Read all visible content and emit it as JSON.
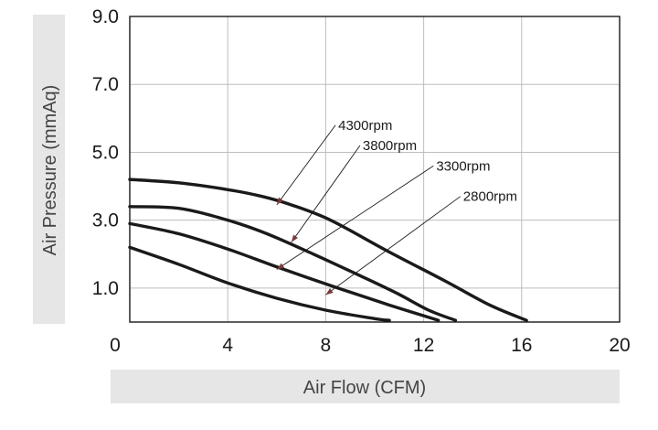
{
  "chart_data": {
    "type": "line",
    "title": "",
    "xlabel": "Air Flow (CFM)",
    "ylabel": "Air Pressure (mmAq)",
    "xlim": [
      0,
      20
    ],
    "ylim": [
      0,
      9
    ],
    "x_ticks": [
      0,
      4,
      8,
      12,
      16,
      20
    ],
    "x_tick_labels": [
      "0",
      "4",
      "8",
      "12",
      "16",
      "20"
    ],
    "y_ticks": [
      1,
      3,
      5,
      7,
      9
    ],
    "y_tick_labels": [
      "1.0",
      "3.0",
      "5.0",
      "7.0",
      "9.0"
    ],
    "grid": true,
    "legend": "none",
    "series": [
      {
        "name": "4300rpm",
        "x": [
          0,
          2,
          4,
          5.4,
          6.6,
          8.2,
          10.5,
          12.9,
          14.7,
          16.2
        ],
        "y": [
          4.2,
          4.1,
          3.9,
          3.7,
          3.45,
          3.0,
          2.1,
          1.2,
          0.5,
          0.05
        ]
      },
      {
        "name": "3800rpm",
        "x": [
          0,
          2,
          4,
          5.6,
          7.5,
          9.3,
          10.9,
          12.2,
          13.3
        ],
        "y": [
          3.4,
          3.35,
          3.0,
          2.6,
          2.0,
          1.4,
          0.85,
          0.35,
          0.05
        ]
      },
      {
        "name": "3300rpm",
        "x": [
          0,
          2,
          4,
          6.1,
          8.5,
          10.6,
          12.6
        ],
        "y": [
          2.9,
          2.6,
          2.15,
          1.6,
          1.0,
          0.5,
          0.05
        ]
      },
      {
        "name": "2800rpm",
        "x": [
          0,
          2,
          4,
          6,
          8,
          10,
          10.6
        ],
        "y": [
          2.2,
          1.7,
          1.15,
          0.7,
          0.35,
          0.1,
          0.05
        ]
      }
    ],
    "annotations": [
      {
        "text": "4300rpm",
        "series": "4300rpm",
        "label_at": [
          8.4,
          5.8
        ],
        "arrow_at": [
          6.0,
          3.45
        ]
      },
      {
        "text": "3800rpm",
        "series": "3800rpm",
        "label_at": [
          9.4,
          5.2
        ],
        "arrow_at": [
          6.6,
          2.35
        ]
      },
      {
        "text": "3300rpm",
        "series": "3300rpm",
        "label_at": [
          12.4,
          4.6
        ],
        "arrow_at": [
          6.0,
          1.55
        ]
      },
      {
        "text": "2800rpm",
        "series": "2800rpm",
        "label_at": [
          13.5,
          3.7
        ],
        "arrow_at": [
          8.0,
          0.8
        ]
      }
    ]
  }
}
